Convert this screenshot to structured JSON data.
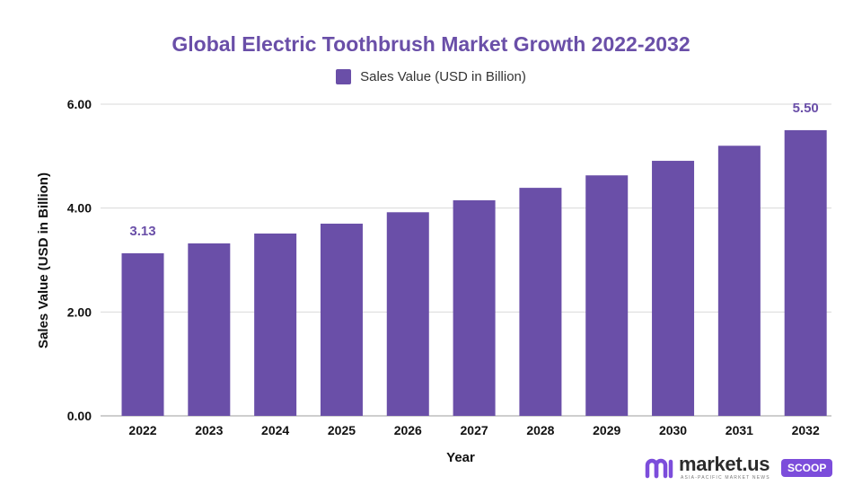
{
  "chart_data": {
    "type": "bar",
    "title": "Global Electric Toothbrush Market Growth 2022-2032",
    "xlabel": "Year",
    "ylabel": "Sales Value (USD in Billion)",
    "legend": {
      "position": "top-center",
      "entries": [
        "Sales Value (USD in Billion)"
      ]
    },
    "categories": [
      "2022",
      "2023",
      "2024",
      "2025",
      "2026",
      "2027",
      "2028",
      "2029",
      "2030",
      "2031",
      "2032"
    ],
    "series": [
      {
        "name": "Sales Value (USD in Billion)",
        "values": [
          3.13,
          3.32,
          3.51,
          3.7,
          3.92,
          4.15,
          4.39,
          4.63,
          4.91,
          5.2,
          5.5
        ]
      }
    ],
    "data_labels": [
      {
        "category": "2022",
        "text": "3.13"
      },
      {
        "category": "2032",
        "text": "5.50"
      }
    ],
    "ylim": [
      0,
      6
    ],
    "y_ticks": [
      0,
      2,
      4,
      6
    ],
    "y_tick_labels": [
      "0.00",
      "2.00",
      "4.00",
      "6.00"
    ],
    "grid": true,
    "colors": {
      "bar": "#6a4fa8",
      "grid": "#d9d9d9",
      "title": "#6a4fa8"
    }
  },
  "branding": {
    "logo_text": "market.us",
    "logo_tagline": "ASIA-PACIFIC MARKET NEWS",
    "badge": "SCOOP"
  }
}
